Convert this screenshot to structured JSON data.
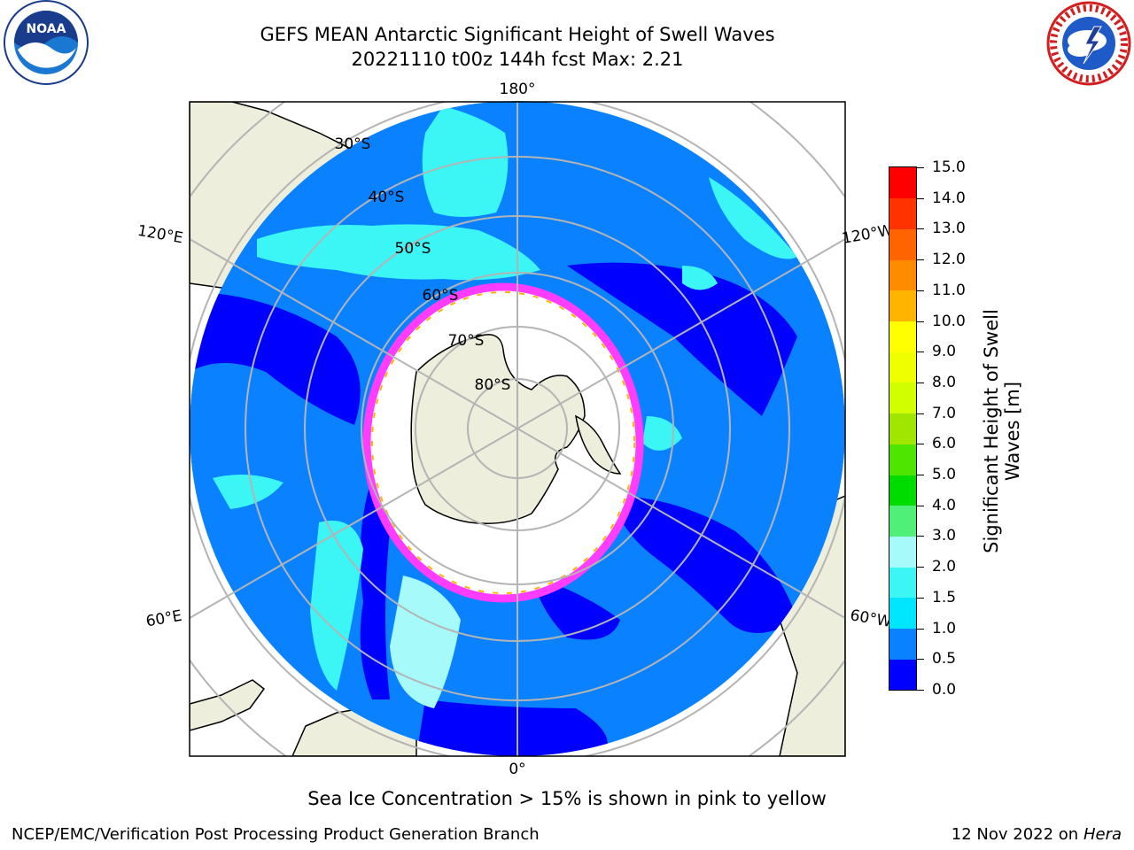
{
  "title_line1": "GEFS MEAN Antarctic Significant Height of Swell Waves",
  "title_line2": "20221110 t00z 144h fcst   Max: 2.21",
  "longitude_labels": {
    "top": "180°",
    "bottom": "0°",
    "left_upper": "120°E",
    "left_lower": "60°E",
    "right_upper": "120°W",
    "right_lower": "60°W"
  },
  "latitude_labels": [
    "30°S",
    "40°S",
    "50°S",
    "60°S",
    "70°S",
    "80°S"
  ],
  "colorbar": {
    "label_line1": "Significant Height of Swell",
    "label_line2": "Waves [m]",
    "ticks": [
      "0.0",
      "0.5",
      "1.0",
      "1.5",
      "2.0",
      "3.0",
      "4.0",
      "5.0",
      "6.0",
      "7.0",
      "8.0",
      "9.0",
      "10.0",
      "11.0",
      "12.0",
      "13.0",
      "14.0",
      "15.0"
    ],
    "colors": [
      "#0000ff",
      "#0a82ff",
      "#00e6ff",
      "#3cf5f5",
      "#a6fafa",
      "#50f078",
      "#00dc00",
      "#4ee600",
      "#a0e600",
      "#d2ff00",
      "#f0ff00",
      "#ffff00",
      "#ffb400",
      "#ff8c00",
      "#ff6400",
      "#ff3200",
      "#ff0000"
    ]
  },
  "note": "Sea Ice Concentration > 15% is shown in pink to yellow",
  "footer_left": "NCEP/EMC/Verification Post Processing Product Generation Branch",
  "footer_right_date": "12 Nov 2022 on",
  "footer_right_host": "Hera",
  "colors": {
    "land": "#eeeedc",
    "ocean_deep": "#0a82ff",
    "ocean_low": "#0000ff",
    "swell_mid": "#00e6ff",
    "ice_edge": "#ff3cff",
    "grid": "#b4b4b4"
  }
}
